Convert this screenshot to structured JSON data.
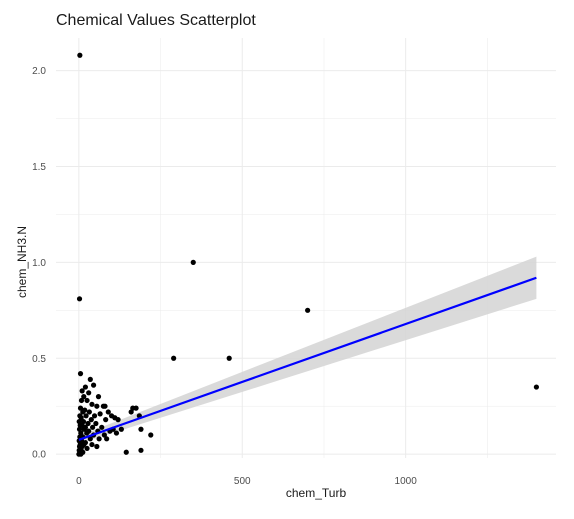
{
  "chart_data": {
    "type": "scatter",
    "title": "Chemical Values Scatterplot",
    "xlabel": "chem_Turb",
    "ylabel": "chem_NH3.N",
    "xlim": [
      -70,
      1460
    ],
    "ylim": [
      -0.02,
      2.17
    ],
    "x_ticks": [
      0,
      500,
      1000
    ],
    "x_tick_labels": [
      "0",
      "500",
      "1000"
    ],
    "y_ticks": [
      0.0,
      0.5,
      1.0,
      1.5,
      2.0
    ],
    "y_tick_labels": [
      "0.0",
      "0.5",
      "1.0",
      "1.5",
      "2.0"
    ],
    "grid": true,
    "legend": "none",
    "colors": {
      "points": "#000000",
      "fit_line": "#0000ff",
      "ribbon": "#d3d3d3",
      "grid": "#ebebeb"
    },
    "points": [
      {
        "x": 3,
        "y": 2.08
      },
      {
        "x": 350,
        "y": 1.0
      },
      {
        "x": 2,
        "y": 0.81
      },
      {
        "x": 700,
        "y": 0.75
      },
      {
        "x": 290,
        "y": 0.5
      },
      {
        "x": 460,
        "y": 0.5
      },
      {
        "x": 1400,
        "y": 0.35
      },
      {
        "x": 5,
        "y": 0.42
      },
      {
        "x": 35,
        "y": 0.39
      },
      {
        "x": 45,
        "y": 0.36
      },
      {
        "x": 20,
        "y": 0.35
      },
      {
        "x": 10,
        "y": 0.33
      },
      {
        "x": 30,
        "y": 0.32
      },
      {
        "x": 60,
        "y": 0.3
      },
      {
        "x": 15,
        "y": 0.3
      },
      {
        "x": 25,
        "y": 0.28
      },
      {
        "x": 8,
        "y": 0.28
      },
      {
        "x": 40,
        "y": 0.26
      },
      {
        "x": 55,
        "y": 0.25
      },
      {
        "x": 75,
        "y": 0.25
      },
      {
        "x": 5,
        "y": 0.24
      },
      {
        "x": 18,
        "y": 0.23
      },
      {
        "x": 12,
        "y": 0.22
      },
      {
        "x": 32,
        "y": 0.22
      },
      {
        "x": 65,
        "y": 0.21
      },
      {
        "x": 3,
        "y": 0.2
      },
      {
        "x": 22,
        "y": 0.2
      },
      {
        "x": 48,
        "y": 0.2
      },
      {
        "x": 7,
        "y": 0.19
      },
      {
        "x": 38,
        "y": 0.18
      },
      {
        "x": 82,
        "y": 0.18
      },
      {
        "x": 1,
        "y": 0.17
      },
      {
        "x": 14,
        "y": 0.17
      },
      {
        "x": 28,
        "y": 0.16
      },
      {
        "x": 52,
        "y": 0.16
      },
      {
        "x": 4,
        "y": 0.15
      },
      {
        "x": 10,
        "y": 0.15
      },
      {
        "x": 20,
        "y": 0.14
      },
      {
        "x": 42,
        "y": 0.14
      },
      {
        "x": 70,
        "y": 0.14
      },
      {
        "x": 2,
        "y": 0.13
      },
      {
        "x": 16,
        "y": 0.13
      },
      {
        "x": 30,
        "y": 0.12
      },
      {
        "x": 58,
        "y": 0.12
      },
      {
        "x": 95,
        "y": 0.12
      },
      {
        "x": 6,
        "y": 0.11
      },
      {
        "x": 24,
        "y": 0.11
      },
      {
        "x": 45,
        "y": 0.1
      },
      {
        "x": 78,
        "y": 0.1
      },
      {
        "x": 3,
        "y": 0.09
      },
      {
        "x": 12,
        "y": 0.09
      },
      {
        "x": 35,
        "y": 0.08
      },
      {
        "x": 62,
        "y": 0.08
      },
      {
        "x": 85,
        "y": 0.08
      },
      {
        "x": 1,
        "y": 0.07
      },
      {
        "x": 8,
        "y": 0.07
      },
      {
        "x": 20,
        "y": 0.06
      },
      {
        "x": 4,
        "y": 0.05
      },
      {
        "x": 15,
        "y": 0.05
      },
      {
        "x": 40,
        "y": 0.05
      },
      {
        "x": 2,
        "y": 0.04
      },
      {
        "x": 10,
        "y": 0.04
      },
      {
        "x": 55,
        "y": 0.04
      },
      {
        "x": 5,
        "y": 0.03
      },
      {
        "x": 25,
        "y": 0.03
      },
      {
        "x": 1,
        "y": 0.02
      },
      {
        "x": 7,
        "y": 0.02
      },
      {
        "x": 3,
        "y": 0.01
      },
      {
        "x": 12,
        "y": 0.01
      },
      {
        "x": 0,
        "y": 0.0
      },
      {
        "x": 6,
        "y": 0.0
      },
      {
        "x": 80,
        "y": 0.25
      },
      {
        "x": 90,
        "y": 0.22
      },
      {
        "x": 100,
        "y": 0.2
      },
      {
        "x": 110,
        "y": 0.19
      },
      {
        "x": 120,
        "y": 0.18
      },
      {
        "x": 105,
        "y": 0.13
      },
      {
        "x": 115,
        "y": 0.11
      },
      {
        "x": 130,
        "y": 0.13
      },
      {
        "x": 145,
        "y": 0.01
      },
      {
        "x": 160,
        "y": 0.22
      },
      {
        "x": 165,
        "y": 0.24
      },
      {
        "x": 175,
        "y": 0.24
      },
      {
        "x": 185,
        "y": 0.2
      },
      {
        "x": 190,
        "y": 0.13
      },
      {
        "x": 190,
        "y": 0.02
      },
      {
        "x": 220,
        "y": 0.1
      }
    ],
    "fit_line": {
      "x": [
        0,
        1400
      ],
      "y": [
        0.075,
        0.92
      ],
      "ribbon_lower": [
        0.055,
        0.81
      ],
      "ribbon_upper": [
        0.095,
        1.03
      ]
    }
  }
}
